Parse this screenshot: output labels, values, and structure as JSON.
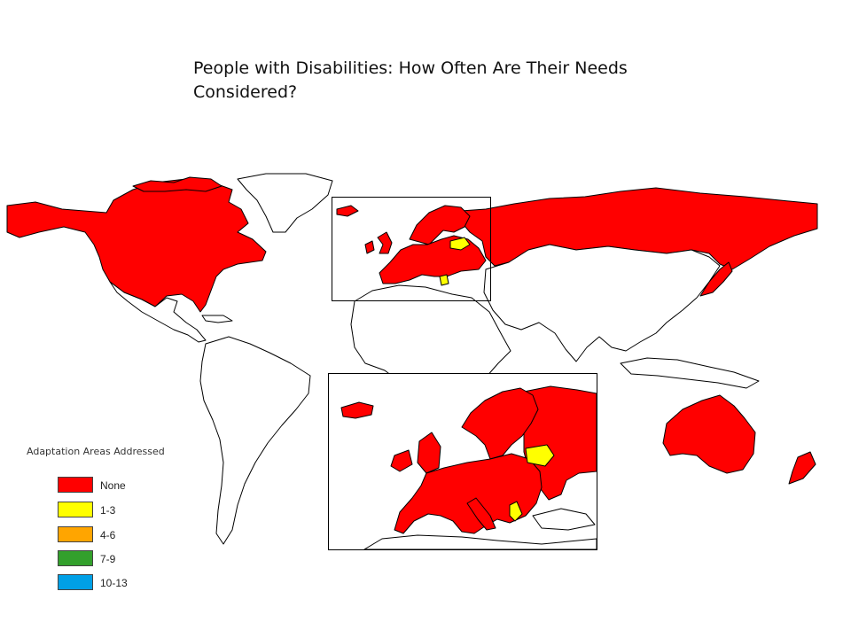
{
  "title": "People with Disabilities: How Often Are Their Needs Considered?",
  "legend": {
    "title": "Adaptation Areas Addressed",
    "items": [
      {
        "label": "None",
        "color": "#ff0000"
      },
      {
        "label": "1-3",
        "color": "#ffff00"
      },
      {
        "label": "4-6",
        "color": "#ffa500"
      },
      {
        "label": "7-9",
        "color": "#33a02c"
      },
      {
        "label": "10-13",
        "color": "#00a0e6"
      }
    ]
  },
  "colors": {
    "none": "#ff0000",
    "range_1_3": "#ffff00",
    "unshaded": "#ffffff",
    "border": "#000000"
  }
}
